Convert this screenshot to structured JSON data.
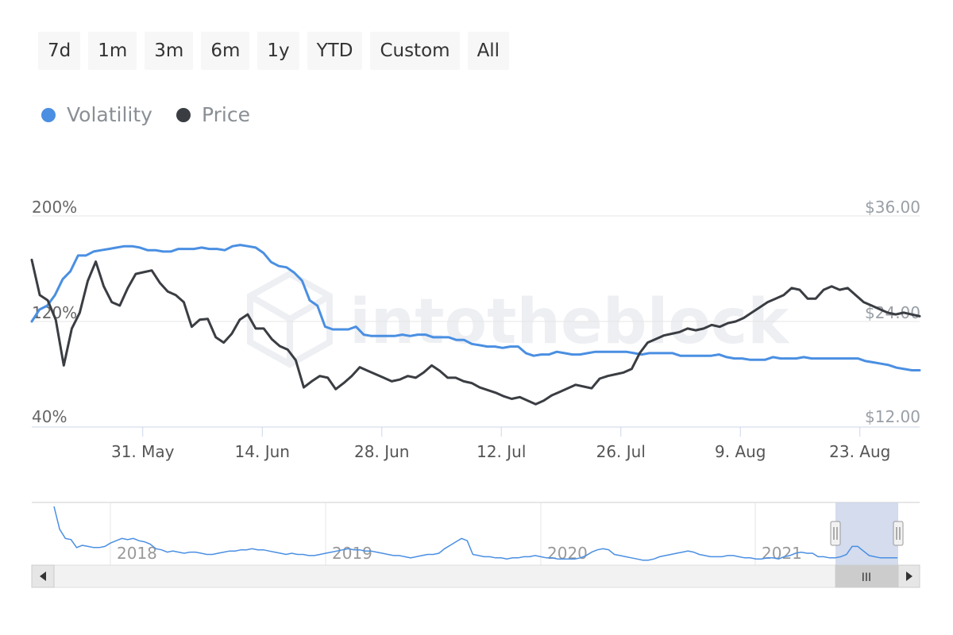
{
  "range_selector": {
    "buttons": [
      "7d",
      "1m",
      "3m",
      "6m",
      "1y",
      "YTD",
      "Custom",
      "All"
    ]
  },
  "legend": {
    "items": [
      {
        "label": "Volatility",
        "color": "#4a8fe2"
      },
      {
        "label": "Price",
        "color": "#3a3d42"
      }
    ]
  },
  "watermark": "intotheblock",
  "navigator": {
    "years": [
      "2018",
      "2019",
      "2020",
      "2021"
    ],
    "scroll_grip": "III",
    "handle_glyph": "||",
    "left_arrow": "◂",
    "right_arrow": "▸"
  },
  "chart_data": {
    "type": "line",
    "title": "",
    "x_tick_labels": [
      "31. May",
      "14. Jun",
      "28. Jun",
      "12. Jul",
      "26. Jul",
      "9. Aug",
      "23. Aug"
    ],
    "x_range": [
      "2021-05-18",
      "2021-08-30"
    ],
    "y_left": {
      "unit": "%",
      "ticks": [
        "200%",
        "120%",
        "40%"
      ],
      "range": [
        40,
        200
      ]
    },
    "y_right": {
      "unit": "$",
      "ticks": [
        "$36.00",
        "$24.00",
        "$12.00"
      ],
      "range": [
        12,
        36
      ]
    },
    "grid": "horizontal",
    "legend_position": "top-left",
    "series": [
      {
        "name": "Volatility",
        "axis": "left",
        "color": "#4a8fe2",
        "values": [
          120,
          129,
          132,
          140,
          152,
          158,
          170,
          170,
          173,
          174,
          175,
          176,
          177,
          177,
          176,
          174,
          174,
          173,
          173,
          175,
          175,
          175,
          176,
          175,
          175,
          174,
          177,
          178,
          177,
          176,
          172,
          165,
          162,
          161,
          157,
          151,
          136,
          132,
          116,
          114,
          114,
          114,
          116,
          110,
          109,
          109,
          109,
          109,
          110,
          109,
          110,
          110,
          108,
          108,
          108,
          106,
          106,
          103,
          102,
          101,
          101,
          100,
          101,
          101,
          96,
          94,
          95,
          95,
          97,
          96,
          95,
          95,
          96,
          97,
          97,
          97,
          97,
          97,
          96,
          95,
          96,
          96,
          96,
          96,
          94,
          94,
          94,
          94,
          94,
          95,
          93,
          92,
          92,
          91,
          91,
          91,
          93,
          92,
          92,
          92,
          93,
          92,
          92,
          92,
          92,
          92,
          92,
          92,
          90,
          89,
          88,
          87,
          85,
          84,
          83,
          83
        ]
      },
      {
        "name": "Price",
        "axis": "right",
        "color": "#3a3d42",
        "values": [
          31.0,
          27.0,
          26.4,
          24.2,
          19.0,
          23.2,
          25.0,
          28.6,
          30.8,
          28.0,
          26.2,
          25.8,
          27.8,
          29.4,
          29.6,
          29.8,
          28.4,
          27.4,
          27.0,
          26.2,
          23.4,
          24.2,
          24.3,
          22.2,
          21.6,
          22.6,
          24.2,
          24.8,
          23.2,
          23.2,
          22.0,
          21.2,
          20.8,
          19.6,
          16.5,
          17.2,
          17.8,
          17.6,
          16.3,
          17.0,
          17.8,
          18.8,
          18.4,
          18.0,
          17.6,
          17.2,
          17.4,
          17.8,
          17.6,
          18.2,
          19.0,
          18.4,
          17.6,
          17.6,
          17.2,
          17.0,
          16.5,
          16.2,
          15.9,
          15.5,
          15.2,
          15.4,
          15.0,
          14.6,
          15.0,
          15.6,
          16.0,
          16.4,
          16.8,
          16.6,
          16.4,
          17.5,
          17.8,
          18.0,
          18.2,
          18.6,
          20.4,
          21.6,
          22.0,
          22.4,
          22.6,
          22.8,
          23.2,
          23.0,
          23.2,
          23.6,
          23.4,
          23.8,
          24.0,
          24.4,
          25.0,
          25.6,
          26.2,
          26.6,
          27.0,
          27.8,
          27.6,
          26.6,
          26.6,
          27.6,
          28.0,
          27.6,
          27.8,
          27.0,
          26.2,
          25.8,
          25.4,
          25.0,
          24.8,
          25.0,
          24.8,
          24.6
        ]
      }
    ],
    "navigator": {
      "series": "Volatility",
      "values": [
        200,
        180,
        172,
        171,
        164,
        166,
        165,
        164,
        164,
        165,
        168,
        170,
        172,
        171,
        172,
        170,
        169,
        167,
        163,
        162,
        160,
        161,
        160,
        159,
        160,
        160,
        159,
        158,
        158,
        159,
        160,
        161,
        161,
        162,
        162,
        163,
        162,
        162,
        161,
        160,
        159,
        158,
        159,
        158,
        158,
        157,
        157,
        158,
        159,
        160,
        161,
        162,
        163,
        162,
        162,
        161,
        161,
        160,
        159,
        158,
        157,
        157,
        156,
        155,
        156,
        157,
        158,
        158,
        159,
        163,
        166,
        169,
        172,
        170,
        158,
        157,
        156,
        156,
        155,
        155,
        154,
        155,
        155,
        156,
        156,
        157,
        156,
        155,
        155,
        154,
        154,
        154,
        154,
        155,
        157,
        160,
        162,
        163,
        162,
        158,
        157,
        156,
        155,
        154,
        153,
        153,
        154,
        156,
        157,
        158,
        159,
        160,
        161,
        160,
        158,
        157,
        156,
        156,
        156,
        157,
        157,
        156,
        155,
        155,
        154,
        154,
        155,
        155,
        154,
        156,
        157,
        159,
        160,
        159,
        159,
        156,
        156,
        155,
        155,
        156,
        158,
        165,
        165,
        161,
        157,
        156,
        155,
        155,
        155,
        155
      ]
    }
  }
}
